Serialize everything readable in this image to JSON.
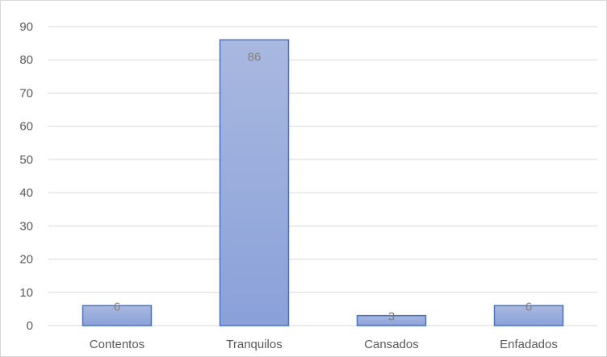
{
  "chart_data": {
    "type": "bar",
    "categories": [
      "Contentos",
      "Tranquilos",
      "Cansados",
      "Enfadados"
    ],
    "values": [
      6,
      86,
      3,
      6
    ],
    "data_labels": [
      "6",
      "86",
      "3",
      "6"
    ],
    "title": "",
    "xlabel": "",
    "ylabel": "",
    "ylim": [
      0,
      90
    ],
    "yticks": [
      0,
      10,
      20,
      30,
      40,
      50,
      60,
      70,
      80,
      90
    ],
    "grid": true,
    "legend": "none",
    "bar_fill_top": "#a9b8e0",
    "bar_fill_bottom": "#8aa1d9",
    "bar_border": "#4472c4",
    "gridline_color": "#d9d9d9"
  }
}
